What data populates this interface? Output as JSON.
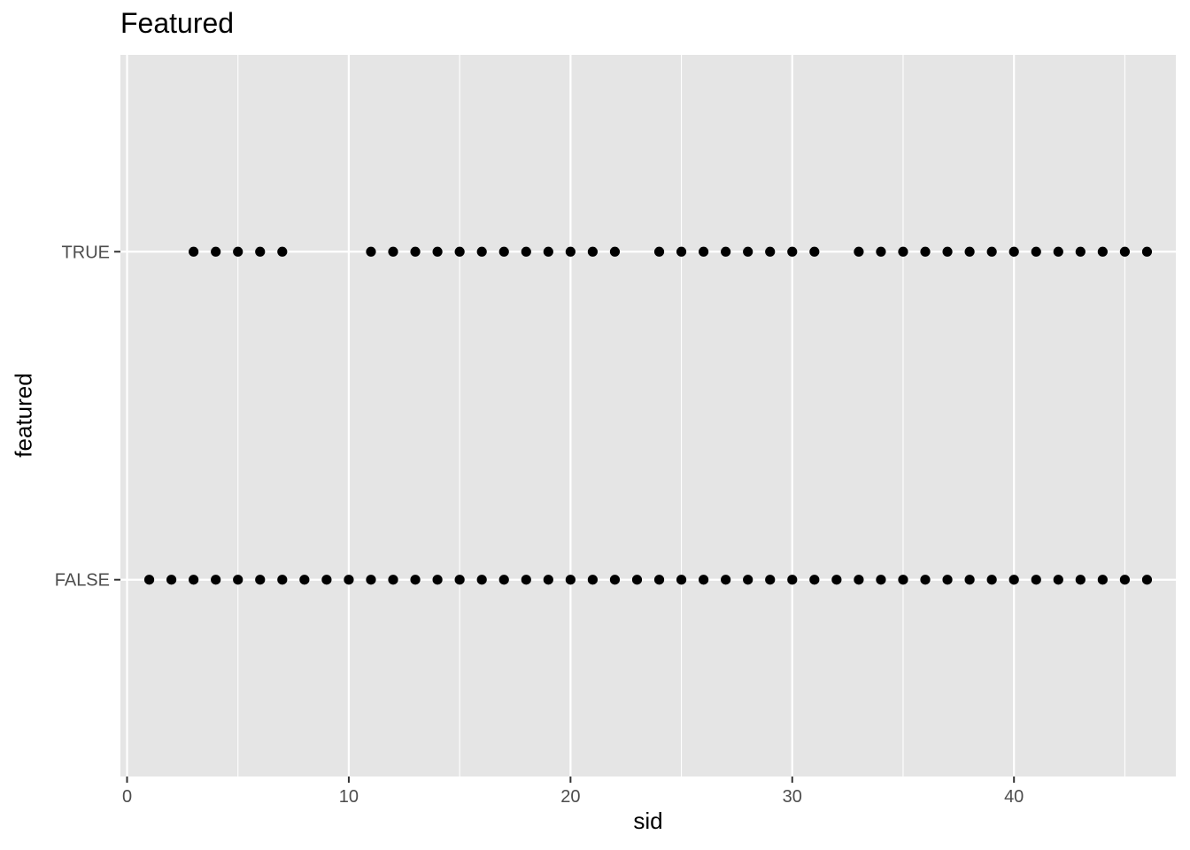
{
  "chart_data": {
    "type": "scatter",
    "title": "Featured",
    "xlabel": "sid",
    "ylabel": "featured",
    "xlim": [
      -0.3,
      47.3
    ],
    "x_ticks": [
      0,
      10,
      20,
      30,
      40
    ],
    "x_tick_labels": [
      "0",
      "10",
      "20",
      "30",
      "40"
    ],
    "y_categories": [
      "FALSE",
      "TRUE"
    ],
    "grid": true,
    "point_color": "#000000",
    "panel_color": "#e5e5e5",
    "grid_color": "#ffffff",
    "series": [
      {
        "category": "TRUE",
        "x": [
          3,
          4,
          5,
          6,
          7,
          11,
          12,
          13,
          14,
          15,
          16,
          17,
          18,
          19,
          20,
          21,
          22,
          24,
          25,
          26,
          27,
          28,
          29,
          30,
          31,
          33,
          34,
          35,
          36,
          37,
          38,
          39,
          40,
          41,
          42,
          43,
          44,
          45,
          46
        ]
      },
      {
        "category": "FALSE",
        "x": [
          1,
          2,
          3,
          4,
          5,
          6,
          7,
          8,
          9,
          10,
          11,
          12,
          13,
          14,
          15,
          16,
          17,
          18,
          19,
          20,
          21,
          22,
          23,
          24,
          25,
          26,
          27,
          28,
          29,
          30,
          31,
          32,
          33,
          34,
          35,
          36,
          37,
          38,
          39,
          40,
          41,
          42,
          43,
          44,
          45,
          46
        ]
      }
    ]
  }
}
